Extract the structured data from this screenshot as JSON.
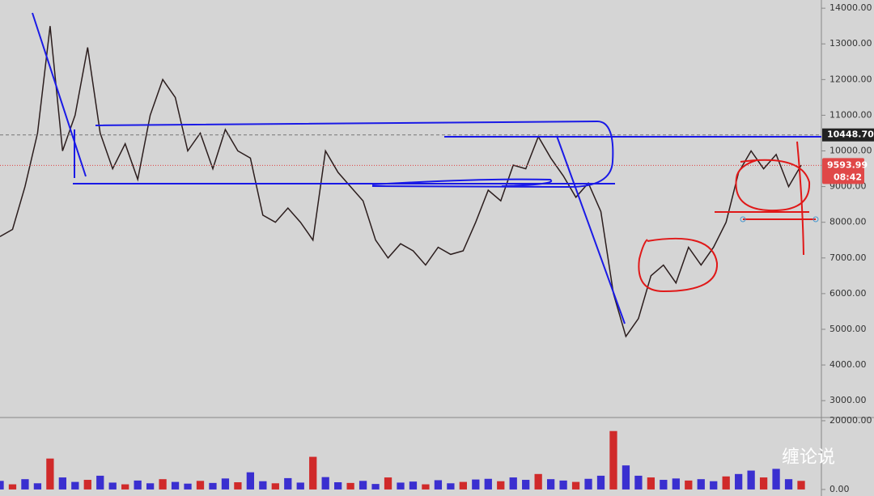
{
  "chart_data": [
    {
      "type": "line",
      "color": "#2b1d1d",
      "values": [
        7600,
        7800,
        9000,
        10500,
        13500,
        10000,
        11000,
        12900,
        10500,
        9500,
        10200,
        9200,
        11000,
        12000,
        11500,
        10000,
        10500,
        9500,
        10600,
        10000,
        9800,
        8200,
        8000,
        8400,
        8000,
        7500,
        10000,
        9400,
        9000,
        8600,
        7500,
        7000,
        7400,
        7200,
        6800,
        7300,
        7100,
        7200,
        8000,
        8900,
        8600,
        9600,
        9500,
        10400,
        9800,
        9300,
        8700,
        9100,
        8300,
        6000,
        4800,
        5300,
        6500,
        6800,
        6300,
        7300,
        6800,
        7300,
        8000,
        9400,
        10000,
        9500,
        9900,
        9000,
        9600
      ],
      "ylim": [
        2550,
        14230
      ],
      "yticks": [
        {
          "value": 3000,
          "label": "3000.00"
        },
        {
          "value": 4000,
          "label": "4000.00"
        },
        {
          "value": 5000,
          "label": "5000.00"
        },
        {
          "value": 6000,
          "label": "6000.00"
        },
        {
          "value": 7000,
          "label": "7000.00"
        },
        {
          "value": 8000,
          "label": "8000.00"
        },
        {
          "value": 9000,
          "label": "9000.00"
        },
        {
          "value": 10000,
          "label": "10000.00"
        },
        {
          "value": 11000,
          "label": "11000.00"
        },
        {
          "value": 12000,
          "label": "12000.00"
        },
        {
          "value": 13000,
          "label": "13000.00"
        },
        {
          "value": 14000,
          "label": "14000.00"
        }
      ],
      "level": {
        "value": 10448.7,
        "label": "10448.70"
      },
      "last_price": 9593.99,
      "countdown": "08:42"
    },
    {
      "type": "bar",
      "color": "#3a2fd0",
      "values": [
        2500,
        1500,
        3000,
        1800,
        9000,
        3500,
        2200,
        2800,
        4000,
        2000,
        1500,
        2600,
        1800,
        3000,
        2200,
        1700,
        2500,
        1900,
        3200,
        2100,
        5000,
        2400,
        1800,
        3300,
        2000,
        9500,
        3600,
        2100,
        1900,
        2500,
        1600,
        3500,
        2000,
        2300,
        1500,
        2700,
        1800,
        2200,
        2900,
        3100,
        2400,
        3500,
        2800,
        4500,
        3000,
        2600,
        2200,
        3100,
        4000,
        17000,
        7000,
        4000,
        3500,
        2800,
        3200,
        2600,
        3000,
        2400,
        3800,
        4500,
        5500,
        3500,
        6000,
        3000,
        2500
      ],
      "ylim": [
        -1900,
        20700
      ],
      "yticks": [
        {
          "value": 0,
          "label": "0.00"
        },
        {
          "value": 20000,
          "label": "20000.00"
        }
      ]
    }
  ],
  "watermark": "缠论说"
}
